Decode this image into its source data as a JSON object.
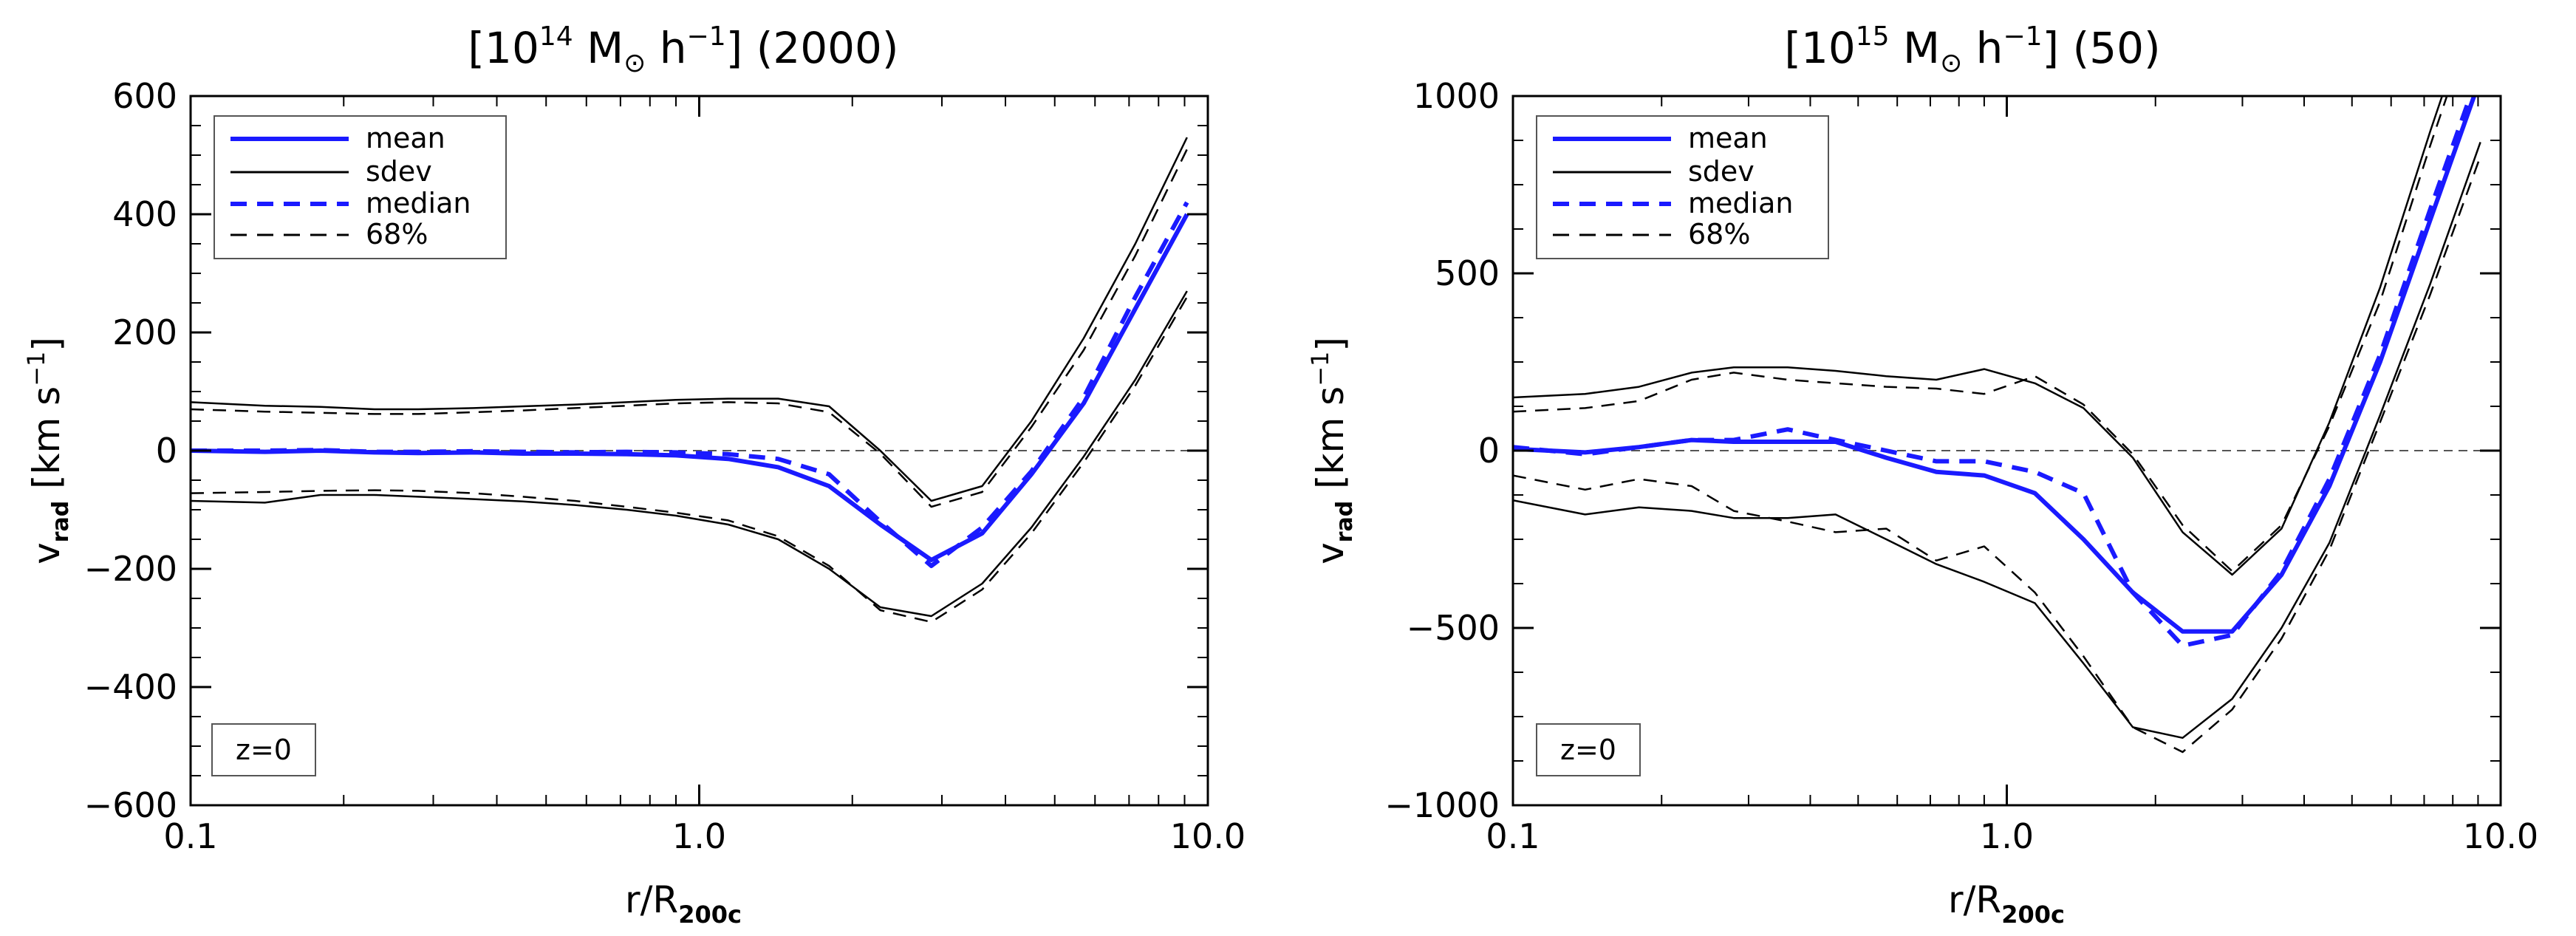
{
  "chart_data": [
    {
      "type": "line",
      "title": {
        "open": "[10",
        "exp": "14",
        "unit": " M",
        "sun": "⊙",
        "h": " h",
        "hexp": "−1",
        "close": "]",
        "count": "(2000)"
      },
      "xlabel": {
        "main": "r/R",
        "sub": "200c"
      },
      "ylabel": {
        "main": "v",
        "sub": "rad",
        "units": "[km s",
        "uexp": "−1",
        "uclose": "]"
      },
      "xscale": "log",
      "xlim": [
        0.1,
        10.0
      ],
      "ylim": [
        -600,
        600
      ],
      "xticks": [
        0.1,
        1.0,
        10.0
      ],
      "xtick_labels": [
        "0.1",
        "1.0",
        "10.0"
      ],
      "yticks": [
        -600,
        -400,
        -200,
        0,
        200,
        400,
        600
      ],
      "ytick_labels": [
        "−600",
        "−400",
        "−200",
        "0",
        "200",
        "400",
        "600"
      ],
      "annotation": "z=0",
      "legend": [
        "mean",
        "sdev",
        "median",
        "68%"
      ],
      "series": [
        {
          "name": "mean",
          "style": "solid",
          "color": "#1a1aff",
          "width": 6,
          "x": [
            0.1,
            0.14,
            0.18,
            0.23,
            0.28,
            0.36,
            0.45,
            0.57,
            0.72,
            0.9,
            1.14,
            1.43,
            1.8,
            2.27,
            2.86,
            3.6,
            4.5,
            5.7,
            7.2,
            9.1
          ],
          "y": [
            0,
            -2,
            0,
            -3,
            -4,
            -3,
            -5,
            -5,
            -6,
            -8,
            -14,
            -28,
            -60,
            -125,
            -185,
            -140,
            -40,
            80,
            240,
            400
          ]
        },
        {
          "name": "median",
          "style": "dashed",
          "color": "#1a1aff",
          "width": 6,
          "x": [
            0.1,
            0.14,
            0.18,
            0.23,
            0.28,
            0.36,
            0.45,
            0.57,
            0.72,
            0.9,
            1.14,
            1.43,
            1.8,
            2.27,
            2.86,
            3.6,
            4.5,
            5.7,
            7.2,
            9.1
          ],
          "y": [
            0,
            0,
            1,
            -2,
            -2,
            -1,
            -2,
            -3,
            -2,
            -3,
            -6,
            -14,
            -40,
            -120,
            -195,
            -130,
            -35,
            90,
            260,
            420
          ]
        },
        {
          "name": "sdev upper",
          "style": "solid",
          "color": "#000000",
          "width": 2.5,
          "x": [
            0.1,
            0.14,
            0.18,
            0.23,
            0.28,
            0.36,
            0.45,
            0.57,
            0.72,
            0.9,
            1.14,
            1.43,
            1.8,
            2.27,
            2.86,
            3.6,
            4.5,
            5.7,
            7.2,
            9.1
          ],
          "y": [
            82,
            76,
            74,
            70,
            70,
            72,
            75,
            78,
            82,
            86,
            88,
            88,
            75,
            0,
            -85,
            -60,
            50,
            190,
            350,
            530
          ]
        },
        {
          "name": "sdev lower",
          "style": "solid",
          "color": "#000000",
          "width": 2.5,
          "x": [
            0.1,
            0.14,
            0.18,
            0.23,
            0.28,
            0.36,
            0.45,
            0.57,
            0.72,
            0.9,
            1.14,
            1.43,
            1.8,
            2.27,
            2.86,
            3.6,
            4.5,
            5.7,
            7.2,
            9.1
          ],
          "y": [
            -85,
            -88,
            -75,
            -75,
            -78,
            -82,
            -86,
            -92,
            -100,
            -110,
            -125,
            -150,
            -200,
            -265,
            -280,
            -225,
            -130,
            -10,
            120,
            270
          ]
        },
        {
          "name": "68% upper",
          "style": "dashed",
          "color": "#000000",
          "width": 2.5,
          "x": [
            0.1,
            0.14,
            0.18,
            0.23,
            0.28,
            0.36,
            0.45,
            0.57,
            0.72,
            0.9,
            1.14,
            1.43,
            1.8,
            2.27,
            2.86,
            3.6,
            4.5,
            5.7,
            7.2,
            9.1
          ],
          "y": [
            70,
            66,
            64,
            62,
            62,
            65,
            68,
            72,
            76,
            80,
            82,
            80,
            65,
            -5,
            -95,
            -70,
            40,
            170,
            330,
            510
          ]
        },
        {
          "name": "68% lower",
          "style": "dashed",
          "color": "#000000",
          "width": 2.5,
          "x": [
            0.1,
            0.14,
            0.18,
            0.23,
            0.28,
            0.36,
            0.45,
            0.57,
            0.72,
            0.9,
            1.14,
            1.43,
            1.8,
            2.27,
            2.86,
            3.6,
            4.5,
            5.7,
            7.2,
            9.1
          ],
          "y": [
            -72,
            -70,
            -68,
            -67,
            -68,
            -72,
            -78,
            -85,
            -95,
            -105,
            -118,
            -145,
            -195,
            -270,
            -290,
            -235,
            -140,
            -20,
            110,
            260
          ]
        }
      ]
    },
    {
      "type": "line",
      "title": {
        "open": "[10",
        "exp": "15",
        "unit": " M",
        "sun": "⊙",
        "h": " h",
        "hexp": "−1",
        "close": "]",
        "count": "(50)"
      },
      "xlabel": {
        "main": "r/R",
        "sub": "200c"
      },
      "ylabel": {
        "main": "v",
        "sub": "rad",
        "units": "[km s",
        "uexp": "−1",
        "uclose": "]"
      },
      "xscale": "log",
      "xlim": [
        0.1,
        10.0
      ],
      "ylim": [
        -1000,
        1000
      ],
      "xticks": [
        0.1,
        1.0,
        10.0
      ],
      "xtick_labels": [
        "0.1",
        "1.0",
        "10.0"
      ],
      "yticks": [
        -1000,
        -500,
        0,
        500,
        1000
      ],
      "ytick_labels": [
        "−1000",
        "−500",
        "0",
        "500",
        "1000"
      ],
      "annotation": "z=0",
      "legend": [
        "mean",
        "sdev",
        "median",
        "68%"
      ],
      "series": [
        {
          "name": "mean",
          "style": "solid",
          "color": "#1a1aff",
          "width": 6,
          "x": [
            0.1,
            0.14,
            0.18,
            0.23,
            0.28,
            0.36,
            0.45,
            0.57,
            0.72,
            0.9,
            1.14,
            1.43,
            1.8,
            2.27,
            2.86,
            3.6,
            4.5,
            5.7,
            7.2,
            9.1
          ],
          "y": [
            5,
            -5,
            10,
            30,
            25,
            25,
            25,
            -20,
            -60,
            -70,
            -120,
            -250,
            -400,
            -510,
            -510,
            -350,
            -100,
            250,
            650,
            1050
          ]
        },
        {
          "name": "median",
          "style": "dashed",
          "color": "#1a1aff",
          "width": 6,
          "x": [
            0.1,
            0.14,
            0.18,
            0.23,
            0.28,
            0.36,
            0.45,
            0.57,
            0.72,
            0.9,
            1.14,
            1.43,
            1.8,
            2.27,
            2.86,
            3.6,
            4.5,
            5.7,
            7.2,
            9.1
          ],
          "y": [
            10,
            -10,
            10,
            30,
            30,
            60,
            30,
            0,
            -30,
            -30,
            -60,
            -120,
            -400,
            -550,
            -520,
            -340,
            -80,
            270,
            680,
            1080
          ]
        },
        {
          "name": "sdev upper",
          "style": "solid",
          "color": "#000000",
          "width": 2.5,
          "x": [
            0.1,
            0.14,
            0.18,
            0.23,
            0.28,
            0.36,
            0.45,
            0.57,
            0.72,
            0.9,
            1.14,
            1.43,
            1.8,
            2.27,
            2.86,
            3.6,
            4.5,
            5.7,
            7.2,
            9.1
          ],
          "y": [
            150,
            160,
            180,
            220,
            235,
            235,
            225,
            210,
            200,
            230,
            190,
            120,
            -20,
            -230,
            -350,
            -220,
            80,
            460,
            900,
            1320
          ]
        },
        {
          "name": "sdev lower",
          "style": "solid",
          "color": "#000000",
          "width": 2.5,
          "x": [
            0.1,
            0.14,
            0.18,
            0.23,
            0.28,
            0.36,
            0.45,
            0.57,
            0.72,
            0.9,
            1.14,
            1.43,
            1.8,
            2.27,
            2.86,
            3.6,
            4.5,
            5.7,
            7.2,
            9.1
          ],
          "y": [
            -140,
            -180,
            -160,
            -170,
            -190,
            -190,
            -180,
            -250,
            -320,
            -370,
            -430,
            -600,
            -780,
            -810,
            -700,
            -500,
            -260,
            100,
            470,
            870
          ]
        },
        {
          "name": "68% upper",
          "style": "dashed",
          "color": "#000000",
          "width": 2.5,
          "x": [
            0.1,
            0.14,
            0.18,
            0.23,
            0.28,
            0.36,
            0.45,
            0.57,
            0.72,
            0.9,
            1.14,
            1.43,
            1.8,
            2.27,
            2.86,
            3.6,
            4.5,
            5.7,
            7.2,
            9.1
          ],
          "y": [
            110,
            120,
            140,
            200,
            220,
            200,
            190,
            180,
            175,
            160,
            210,
            130,
            -10,
            -210,
            -340,
            -210,
            70,
            420,
            860,
            1280
          ]
        },
        {
          "name": "68% lower",
          "style": "dashed",
          "color": "#000000",
          "width": 2.5,
          "x": [
            0.1,
            0.14,
            0.18,
            0.23,
            0.28,
            0.36,
            0.45,
            0.57,
            0.72,
            0.9,
            1.14,
            1.43,
            1.8,
            2.27,
            2.86,
            3.6,
            4.5,
            5.7,
            7.2,
            9.1
          ],
          "y": [
            -70,
            -110,
            -80,
            -100,
            -170,
            -200,
            -230,
            -220,
            -310,
            -270,
            -400,
            -580,
            -780,
            -850,
            -730,
            -530,
            -280,
            80,
            440,
            830
          ]
        }
      ]
    }
  ]
}
